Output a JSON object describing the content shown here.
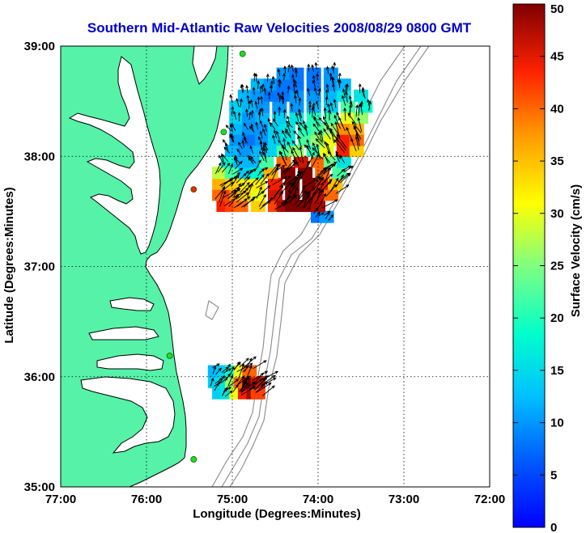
{
  "title": "Southern Mid-Atlantic Raw Velocities 2008/08/29 0800 GMT",
  "xlabel": "Longitude (Degrees:Minutes)",
  "ylabel": "Latitude (Degrees:Minutes)",
  "colorbar_label": "Surface Velocity (cm/s)",
  "colors": {
    "land": "#55f2a8",
    "title": "#0000cc",
    "coast": "#000000",
    "isobath": "#8a8a8a",
    "grid": "#000000",
    "station_green": "#22dd22",
    "station_red": "#ff2200"
  },
  "map": {
    "lon_range": [
      -77.0,
      -72.0
    ],
    "lat_range": [
      35.0,
      39.0
    ],
    "lon_ticks": [
      {
        "value": -77.0,
        "label": "77:00"
      },
      {
        "value": -76.0,
        "label": "76:00"
      },
      {
        "value": -75.0,
        "label": "75:00"
      },
      {
        "value": -74.0,
        "label": "74:00"
      },
      {
        "value": -73.0,
        "label": "73:00"
      },
      {
        "value": -72.0,
        "label": "72:00"
      }
    ],
    "lat_ticks": [
      {
        "value": 39.0,
        "label": "39:00"
      },
      {
        "value": 38.0,
        "label": "38:00"
      },
      {
        "value": 37.0,
        "label": "37:00"
      },
      {
        "value": 36.0,
        "label": "36:00"
      },
      {
        "value": 35.0,
        "label": "35:00"
      }
    ],
    "grid": "dotted",
    "stations": [
      {
        "lon": -74.88,
        "lat": 38.93,
        "type": "green"
      },
      {
        "lon": -75.1,
        "lat": 38.22,
        "type": "green"
      },
      {
        "lon": -75.45,
        "lat": 37.7,
        "type": "red"
      },
      {
        "lon": -75.73,
        "lat": 36.19,
        "type": "green"
      },
      {
        "lon": -75.45,
        "lat": 35.25,
        "type": "green"
      }
    ]
  },
  "colorbar": {
    "min": 0,
    "max": 50,
    "ticks": [
      {
        "value": 0,
        "label": "0"
      },
      {
        "value": 5,
        "label": "5"
      },
      {
        "value": 10,
        "label": "10"
      },
      {
        "value": 15,
        "label": "15"
      },
      {
        "value": 20,
        "label": "20"
      },
      {
        "value": 25,
        "label": "25"
      },
      {
        "value": 30,
        "label": "30"
      },
      {
        "value": 35,
        "label": "35"
      },
      {
        "value": 40,
        "label": "40"
      },
      {
        "value": 45,
        "label": "45"
      },
      {
        "value": 50,
        "label": "50"
      }
    ],
    "colormap": "jet"
  },
  "chart_data": {
    "type": "heatmap",
    "title": "Southern Mid-Atlantic Raw Velocities 2008/08/29 0800 GMT",
    "xlabel": "Longitude (Degrees:Minutes)",
    "ylabel": "Latitude (Degrees:Minutes)",
    "xlim": [
      -77.0,
      -72.0
    ],
    "ylim": [
      35.0,
      39.0
    ],
    "colorbar_range": [
      0,
      50
    ],
    "fields": [
      {
        "lat_range": [
          37.5,
          38.85
        ],
        "lon_range": [
          -75.2,
          -73.4
        ],
        "values": [
          [
            37.45,
            [
              [
                "-74.00",
                8
              ],
              [
                "-73.90",
                10
              ]
            ]
          ],
          [
            37.55,
            [
              [
                "-75.10",
                44
              ],
              [
                "-75.00",
                42
              ],
              [
                "-74.90",
                40
              ],
              [
                "-74.70",
                34
              ],
              [
                "-74.50",
                42
              ],
              [
                "-74.40",
                48
              ],
              [
                "-74.30",
                50
              ],
              [
                "-74.20",
                50
              ],
              [
                "-74.10",
                50
              ],
              [
                "-74.00",
                48
              ]
            ]
          ],
          [
            37.65,
            [
              [
                "-75.15",
                40
              ],
              [
                "-75.05",
                42
              ],
              [
                "-74.95",
                38
              ],
              [
                "-74.85",
                34
              ],
              [
                "-74.70",
                30
              ],
              [
                "-74.50",
                46
              ],
              [
                "-74.30",
                50
              ],
              [
                "-74.10",
                50
              ],
              [
                "-74.00",
                47
              ],
              [
                "-73.85",
                40
              ]
            ]
          ],
          [
            37.75,
            [
              [
                "-75.15",
                36
              ],
              [
                "-75.00",
                34
              ],
              [
                "-74.85",
                32
              ],
              [
                "-74.70",
                32
              ],
              [
                "-74.50",
                44
              ],
              [
                "-74.30",
                50
              ],
              [
                "-74.10",
                50
              ],
              [
                "-73.95",
                45
              ],
              [
                "-73.80",
                35
              ]
            ]
          ],
          [
            37.85,
            [
              [
                "-75.15",
                28
              ],
              [
                "-75.00",
                22
              ],
              [
                "-74.85",
                14
              ],
              [
                "-74.70",
                18
              ],
              [
                "-74.55",
                36
              ],
              [
                "-74.35",
                50
              ],
              [
                "-74.15",
                50
              ],
              [
                "-73.95",
                40
              ],
              [
                "-73.75",
                22
              ]
            ]
          ],
          [
            37.95,
            [
              [
                "-75.05",
                18
              ],
              [
                "-74.90",
                12
              ],
              [
                "-74.75",
                12
              ],
              [
                "-74.60",
                22
              ],
              [
                "-74.40",
                40
              ],
              [
                "-74.20",
                46
              ],
              [
                "-74.00",
                40
              ],
              [
                "-73.85",
                24
              ],
              [
                "-73.70",
                16
              ]
            ]
          ],
          [
            38.05,
            [
              [
                "-75.00",
                12
              ],
              [
                "-74.85",
                10
              ],
              [
                "-74.70",
                12
              ],
              [
                "-74.55",
                14
              ],
              [
                "-74.40",
                22
              ],
              [
                "-74.25",
                26
              ],
              [
                "-74.05",
                20
              ],
              [
                "-73.90",
                30
              ],
              [
                "-73.70",
                44
              ],
              [
                "-73.55",
                34
              ]
            ]
          ],
          [
            38.15,
            [
              [
                "-74.95",
                10
              ],
              [
                "-74.80",
                8
              ],
              [
                "-74.65",
                10
              ],
              [
                "-74.50",
                14
              ],
              [
                "-74.35",
                16
              ],
              [
                "-74.15",
                22
              ],
              [
                "-74.00",
                26
              ],
              [
                "-73.85",
                30
              ],
              [
                "-73.70",
                44
              ],
              [
                "-73.55",
                40
              ]
            ]
          ],
          [
            38.25,
            [
              [
                "-74.95",
                12
              ],
              [
                "-74.80",
                10
              ],
              [
                "-74.65",
                10
              ],
              [
                "-74.50",
                14
              ],
              [
                "-74.35",
                16
              ],
              [
                "-74.15",
                20
              ],
              [
                "-74.00",
                22
              ],
              [
                "-73.85",
                26
              ],
              [
                "-73.70",
                38
              ],
              [
                "-73.55",
                36
              ]
            ]
          ],
          [
            38.35,
            [
              [
                "-74.95",
                14
              ],
              [
                "-74.80",
                10
              ],
              [
                "-74.65",
                12
              ],
              [
                "-74.45",
                14
              ],
              [
                "-74.25",
                16
              ],
              [
                "-74.05",
                20
              ],
              [
                "-73.85",
                22
              ],
              [
                "-73.65",
                30
              ],
              [
                "-73.50",
                26
              ]
            ]
          ],
          [
            38.45,
            [
              [
                "-74.95",
                14
              ],
              [
                "-74.80",
                12
              ],
              [
                "-74.65",
                10
              ],
              [
                "-74.45",
                10
              ],
              [
                "-74.25",
                10
              ],
              [
                "-74.05",
                12
              ],
              [
                "-73.85",
                14
              ],
              [
                "-73.65",
                22
              ],
              [
                "-73.45",
                18
              ]
            ]
          ],
          [
            38.55,
            [
              [
                "-74.85",
                12
              ],
              [
                "-74.70",
                10
              ],
              [
                "-74.55",
                8
              ],
              [
                "-74.40",
                8
              ],
              [
                "-74.25",
                10
              ],
              [
                "-74.05",
                10
              ],
              [
                "-73.85",
                12
              ],
              [
                "-73.70",
                16
              ],
              [
                "-73.50",
                16
              ]
            ]
          ],
          [
            38.65,
            [
              [
                "-74.70",
                12
              ],
              [
                "-74.55",
                10
              ],
              [
                "-74.40",
                8
              ],
              [
                "-74.25",
                8
              ],
              [
                "-74.05",
                8
              ],
              [
                "-73.85",
                10
              ],
              [
                "-73.70",
                12
              ]
            ]
          ],
          [
            38.75,
            [
              [
                "-74.40",
                10
              ],
              [
                "-74.25",
                8
              ],
              [
                "-74.05",
                8
              ],
              [
                "-73.85",
                10
              ]
            ]
          ]
        ]
      },
      {
        "lat_range": [
          35.8,
          36.1
        ],
        "lon_range": [
          -75.2,
          -74.6
        ],
        "values": [
          [
            35.85,
            [
              [
                "-75.15",
                14
              ],
              [
                "-75.05",
                16
              ],
              [
                "-74.95",
                30
              ],
              [
                "-74.85",
                44
              ],
              [
                "-74.75",
                48
              ],
              [
                "-74.70",
                42
              ]
            ]
          ],
          [
            35.95,
            [
              [
                "-75.20",
                14
              ],
              [
                "-75.10",
                16
              ],
              [
                "-75.00",
                26
              ],
              [
                "-74.90",
                40
              ],
              [
                "-74.80",
                50
              ],
              [
                "-74.70",
                46
              ]
            ]
          ],
          [
            36.05,
            [
              [
                "-75.20",
                12
              ],
              [
                "-75.10",
                14
              ],
              [
                "-75.00",
                18
              ],
              [
                "-74.90",
                30
              ],
              [
                "-74.80",
                40
              ]
            ]
          ]
        ]
      }
    ]
  }
}
